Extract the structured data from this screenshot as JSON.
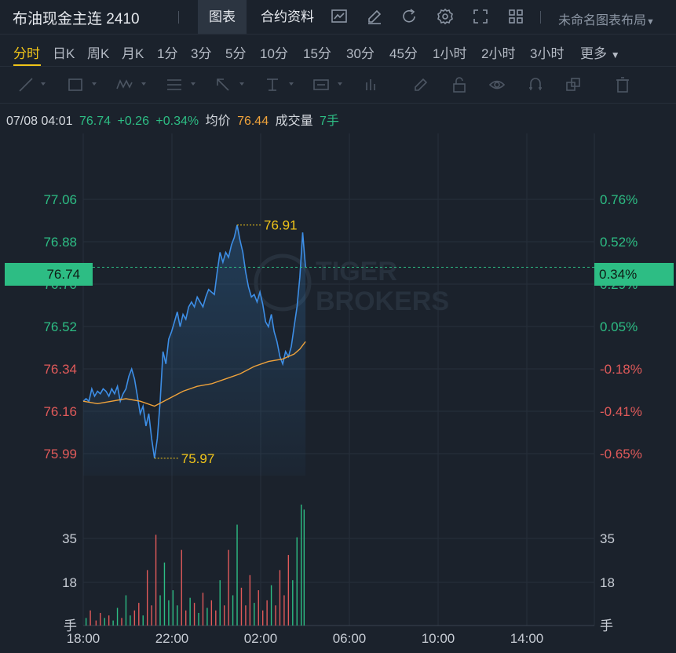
{
  "header": {
    "title": "布油现金主连 2410",
    "tabs": [
      "图表",
      "合约资料"
    ],
    "layout_label": "未命名图表布局"
  },
  "periods": [
    "分时",
    "日K",
    "周K",
    "月K",
    "1分",
    "3分",
    "5分",
    "10分",
    "15分",
    "30分",
    "45分",
    "1小时",
    "2小时",
    "3小时",
    "更多"
  ],
  "active_period": "分时",
  "info": {
    "datetime": "07/08 04:01",
    "price": "76.74",
    "change": "+0.26",
    "change_pct": "+0.34%",
    "avg_label": "均价",
    "avg_value": "76.44",
    "volume_label": "成交量",
    "volume_value": "7手"
  },
  "colors": {
    "up": "#2dbd84",
    "down": "#e05a5a",
    "avg": "#f0a33b",
    "price_line": "#3d8ee6",
    "highlight": "#f0c419"
  },
  "watermark": [
    "TIGER",
    "BROKERS"
  ],
  "chart_data": {
    "type": "line",
    "price_axis_left": [
      "77.06",
      "76.88",
      "76.70",
      "76.52",
      "76.34",
      "76.16",
      "75.99"
    ],
    "pct_axis_right": [
      "0.76%",
      "0.52%",
      "0.29%",
      "0.05%",
      "-0.18%",
      "-0.41%",
      "-0.65%"
    ],
    "current_price_tag": "76.74",
    "current_pct_tag": "0.34%",
    "high_label": "76.91",
    "low_label": "75.97",
    "volume_axis": [
      "35",
      "18",
      "手"
    ],
    "x_ticks": [
      "18:00",
      "22:00",
      "02:00",
      "06:00",
      "10:00",
      "14:00"
    ],
    "price_series": [
      [
        0,
        76.2
      ],
      [
        2,
        76.21
      ],
      [
        4,
        76.2
      ],
      [
        6,
        76.25
      ],
      [
        8,
        76.22
      ],
      [
        10,
        76.24
      ],
      [
        12,
        76.23
      ],
      [
        14,
        76.25
      ],
      [
        16,
        76.24
      ],
      [
        18,
        76.22
      ],
      [
        20,
        76.25
      ],
      [
        22,
        76.23
      ],
      [
        24,
        76.26
      ],
      [
        26,
        76.2
      ],
      [
        28,
        76.23
      ],
      [
        30,
        76.25
      ],
      [
        32,
        76.3
      ],
      [
        34,
        76.33
      ],
      [
        36,
        76.29
      ],
      [
        38,
        76.22
      ],
      [
        40,
        76.15
      ],
      [
        42,
        76.18
      ],
      [
        44,
        76.1
      ],
      [
        46,
        76.15
      ],
      [
        48,
        76.05
      ],
      [
        50,
        75.97
      ],
      [
        52,
        76.05
      ],
      [
        54,
        76.2
      ],
      [
        56,
        76.4
      ],
      [
        58,
        76.35
      ],
      [
        60,
        76.45
      ],
      [
        62,
        76.48
      ],
      [
        64,
        76.52
      ],
      [
        66,
        76.56
      ],
      [
        68,
        76.5
      ],
      [
        70,
        76.55
      ],
      [
        72,
        76.53
      ],
      [
        74,
        76.58
      ],
      [
        76,
        76.6
      ],
      [
        78,
        76.58
      ],
      [
        80,
        76.62
      ],
      [
        82,
        76.6
      ],
      [
        84,
        76.58
      ],
      [
        86,
        76.62
      ],
      [
        88,
        76.65
      ],
      [
        90,
        76.64
      ],
      [
        92,
        76.63
      ],
      [
        94,
        76.72
      ],
      [
        96,
        76.8
      ],
      [
        98,
        76.76
      ],
      [
        100,
        76.8
      ],
      [
        102,
        76.78
      ],
      [
        104,
        76.83
      ],
      [
        106,
        76.86
      ],
      [
        108,
        76.91
      ],
      [
        110,
        76.85
      ],
      [
        112,
        76.8
      ],
      [
        114,
        76.72
      ],
      [
        116,
        76.66
      ],
      [
        118,
        76.62
      ],
      [
        120,
        76.63
      ],
      [
        122,
        76.6
      ],
      [
        124,
        76.64
      ],
      [
        126,
        76.59
      ],
      [
        128,
        76.52
      ],
      [
        130,
        76.5
      ],
      [
        132,
        76.55
      ],
      [
        134,
        76.48
      ],
      [
        136,
        76.44
      ],
      [
        138,
        76.38
      ],
      [
        140,
        76.35
      ],
      [
        142,
        76.4
      ],
      [
        144,
        76.38
      ],
      [
        146,
        76.42
      ],
      [
        148,
        76.5
      ],
      [
        150,
        76.58
      ],
      [
        152,
        76.7
      ],
      [
        154,
        76.88
      ],
      [
        156,
        76.74
      ]
    ],
    "avg_series": [
      [
        0,
        76.2
      ],
      [
        10,
        76.19
      ],
      [
        20,
        76.2
      ],
      [
        30,
        76.21
      ],
      [
        40,
        76.2
      ],
      [
        50,
        76.18
      ],
      [
        60,
        76.21
      ],
      [
        70,
        76.24
      ],
      [
        80,
        76.26
      ],
      [
        90,
        76.27
      ],
      [
        100,
        76.29
      ],
      [
        110,
        76.31
      ],
      [
        120,
        76.34
      ],
      [
        130,
        76.36
      ],
      [
        140,
        76.37
      ],
      [
        148,
        76.39
      ],
      [
        152,
        76.41
      ],
      [
        156,
        76.44
      ]
    ],
    "volume_series": [
      [
        2,
        3
      ],
      [
        5,
        6
      ],
      [
        9,
        2
      ],
      [
        12,
        5
      ],
      [
        15,
        3
      ],
      [
        18,
        4
      ],
      [
        21,
        2
      ],
      [
        24,
        7
      ],
      [
        27,
        3
      ],
      [
        30,
        12
      ],
      [
        33,
        4
      ],
      [
        36,
        6
      ],
      [
        39,
        9
      ],
      [
        42,
        4
      ],
      [
        45,
        22
      ],
      [
        48,
        8
      ],
      [
        51,
        36
      ],
      [
        54,
        12
      ],
      [
        57,
        25
      ],
      [
        60,
        10
      ],
      [
        63,
        14
      ],
      [
        66,
        8
      ],
      [
        69,
        30
      ],
      [
        72,
        6
      ],
      [
        75,
        11
      ],
      [
        78,
        9
      ],
      [
        81,
        5
      ],
      [
        84,
        13
      ],
      [
        87,
        7
      ],
      [
        90,
        10
      ],
      [
        93,
        6
      ],
      [
        96,
        18
      ],
      [
        99,
        8
      ],
      [
        102,
        30
      ],
      [
        105,
        12
      ],
      [
        108,
        40
      ],
      [
        111,
        15
      ],
      [
        114,
        8
      ],
      [
        117,
        20
      ],
      [
        120,
        9
      ],
      [
        123,
        14
      ],
      [
        126,
        6
      ],
      [
        129,
        10
      ],
      [
        132,
        16
      ],
      [
        135,
        8
      ],
      [
        138,
        22
      ],
      [
        141,
        12
      ],
      [
        144,
        28
      ],
      [
        147,
        18
      ],
      [
        150,
        35
      ],
      [
        153,
        48
      ],
      [
        155,
        46
      ]
    ]
  }
}
